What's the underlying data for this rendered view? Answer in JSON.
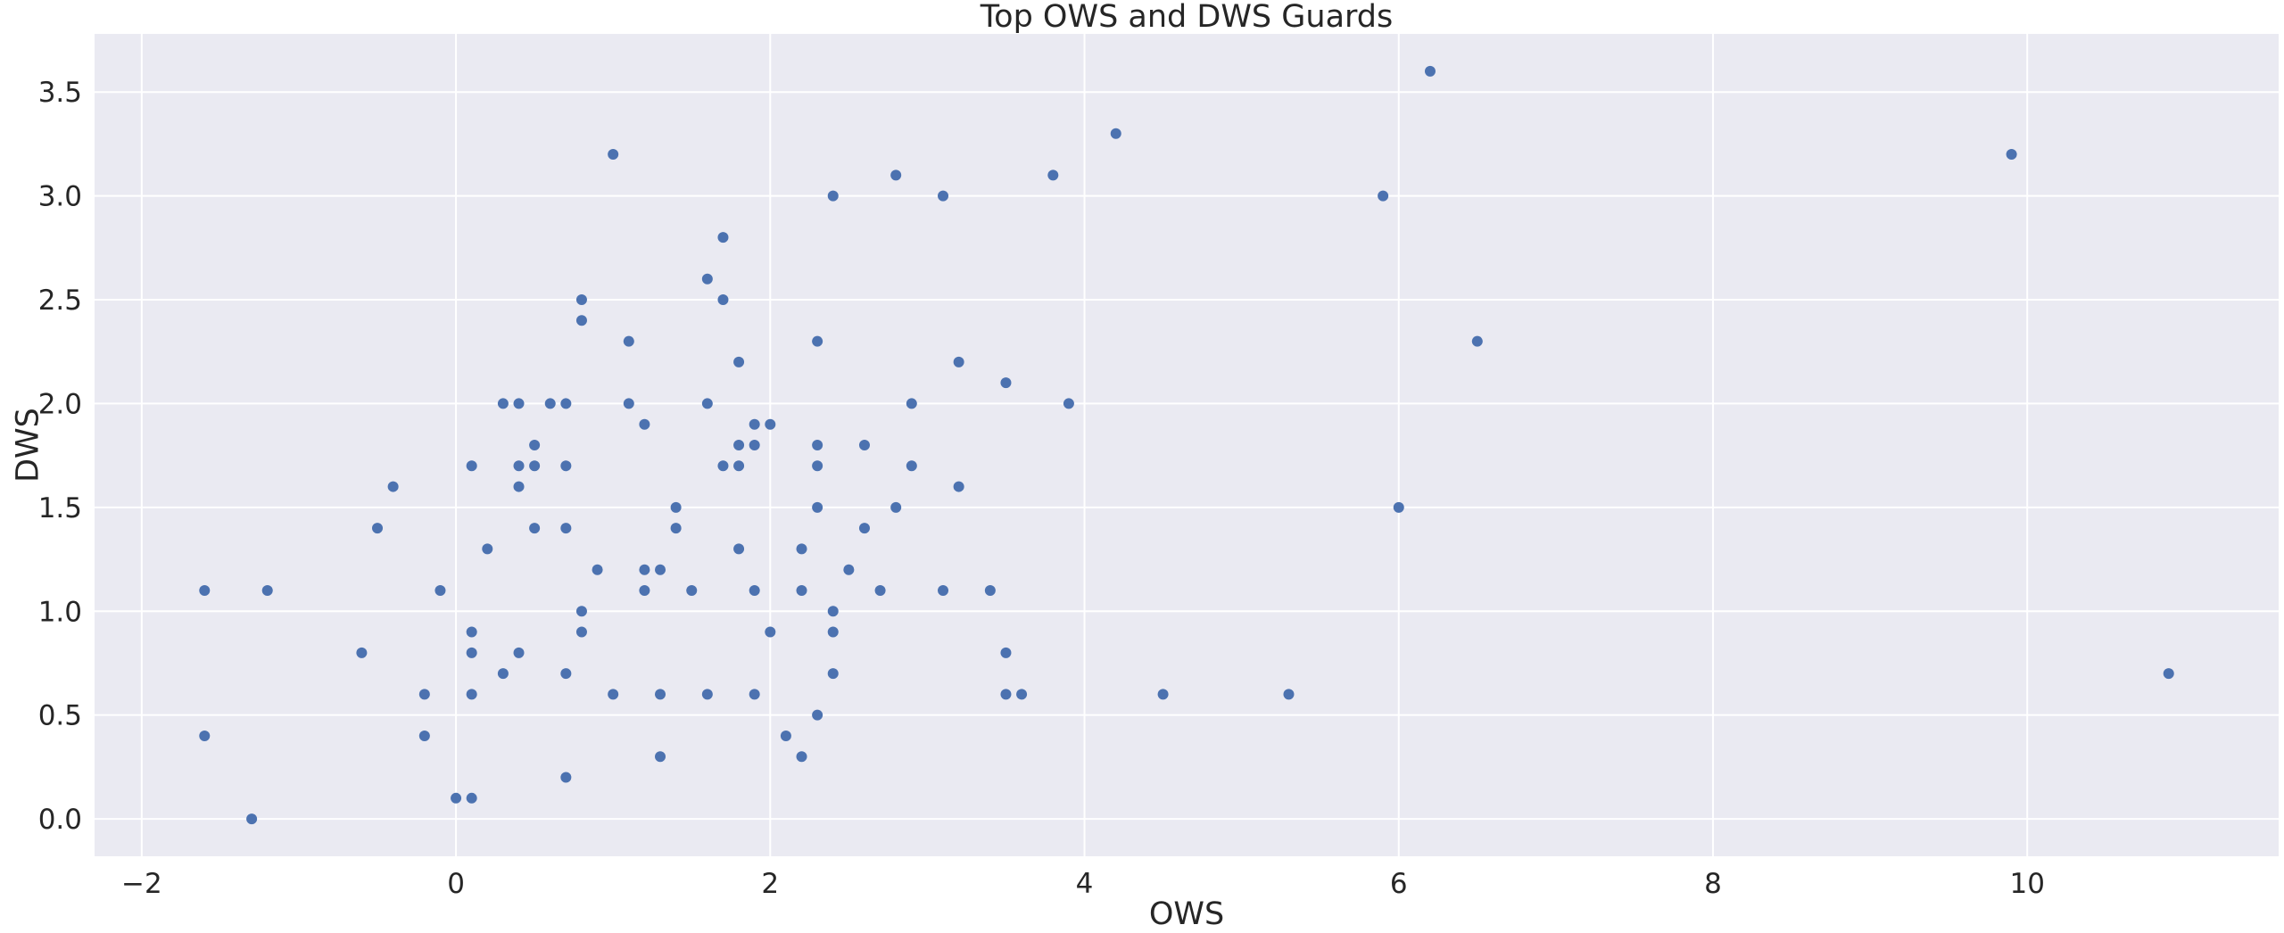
{
  "chart_data": {
    "type": "scatter",
    "title": "Top OWS and DWS Guards",
    "xlabel": "OWS",
    "ylabel": "DWS",
    "xlim": [
      -2.3,
      11.6
    ],
    "ylim": [
      -0.18,
      3.78
    ],
    "xticks": [
      -2,
      0,
      2,
      4,
      6,
      8,
      10
    ],
    "xtick_labels": [
      "−2",
      "0",
      "2",
      "4",
      "6",
      "8",
      "10"
    ],
    "yticks": [
      0.0,
      0.5,
      1.0,
      1.5,
      2.0,
      2.5,
      3.0,
      3.5
    ],
    "ytick_labels": [
      "0.0",
      "0.5",
      "1.0",
      "1.5",
      "2.0",
      "2.5",
      "3.0",
      "3.5"
    ],
    "grid": true,
    "colors": {
      "background": "#eaeaf2",
      "grid": "#ffffff",
      "point": "#4c72b0",
      "text": "#262626"
    },
    "points": [
      {
        "x": -1.6,
        "y": 1.1
      },
      {
        "x": -1.6,
        "y": 0.4
      },
      {
        "x": -1.3,
        "y": 0.0
      },
      {
        "x": -1.2,
        "y": 1.1
      },
      {
        "x": -0.6,
        "y": 0.8
      },
      {
        "x": -0.5,
        "y": 1.4
      },
      {
        "x": -0.4,
        "y": 1.6
      },
      {
        "x": -0.2,
        "y": 0.6
      },
      {
        "x": -0.2,
        "y": 0.4
      },
      {
        "x": -0.1,
        "y": 1.1
      },
      {
        "x": 0.0,
        "y": 0.1
      },
      {
        "x": 0.1,
        "y": 0.1
      },
      {
        "x": 0.1,
        "y": 0.6
      },
      {
        "x": 0.1,
        "y": 0.8
      },
      {
        "x": 0.1,
        "y": 0.9
      },
      {
        "x": 0.1,
        "y": 1.7
      },
      {
        "x": 0.2,
        "y": 1.3
      },
      {
        "x": 0.3,
        "y": 0.7
      },
      {
        "x": 0.3,
        "y": 2.0
      },
      {
        "x": 0.4,
        "y": 2.0
      },
      {
        "x": 0.4,
        "y": 1.7
      },
      {
        "x": 0.4,
        "y": 1.6
      },
      {
        "x": 0.4,
        "y": 0.8
      },
      {
        "x": 0.5,
        "y": 1.8
      },
      {
        "x": 0.5,
        "y": 1.7
      },
      {
        "x": 0.5,
        "y": 1.4
      },
      {
        "x": 0.6,
        "y": 2.0
      },
      {
        "x": 0.7,
        "y": 2.0
      },
      {
        "x": 0.7,
        "y": 1.7
      },
      {
        "x": 0.7,
        "y": 1.4
      },
      {
        "x": 0.7,
        "y": 0.7
      },
      {
        "x": 0.7,
        "y": 0.2
      },
      {
        "x": 0.8,
        "y": 2.5
      },
      {
        "x": 0.8,
        "y": 2.4
      },
      {
        "x": 0.8,
        "y": 1.0
      },
      {
        "x": 0.8,
        "y": 0.9
      },
      {
        "x": 0.9,
        "y": 1.2
      },
      {
        "x": 1.0,
        "y": 3.2
      },
      {
        "x": 1.0,
        "y": 0.6
      },
      {
        "x": 1.1,
        "y": 2.3
      },
      {
        "x": 1.1,
        "y": 2.0
      },
      {
        "x": 1.2,
        "y": 1.9
      },
      {
        "x": 1.2,
        "y": 1.2
      },
      {
        "x": 1.2,
        "y": 1.1
      },
      {
        "x": 1.3,
        "y": 1.2
      },
      {
        "x": 1.3,
        "y": 0.6
      },
      {
        "x": 1.3,
        "y": 0.3
      },
      {
        "x": 1.4,
        "y": 1.5
      },
      {
        "x": 1.4,
        "y": 1.4
      },
      {
        "x": 1.5,
        "y": 1.1
      },
      {
        "x": 1.6,
        "y": 2.6
      },
      {
        "x": 1.6,
        "y": 2.0
      },
      {
        "x": 1.6,
        "y": 0.6
      },
      {
        "x": 1.7,
        "y": 2.8
      },
      {
        "x": 1.7,
        "y": 2.5
      },
      {
        "x": 1.7,
        "y": 1.7
      },
      {
        "x": 1.8,
        "y": 2.2
      },
      {
        "x": 1.8,
        "y": 1.8
      },
      {
        "x": 1.8,
        "y": 1.7
      },
      {
        "x": 1.8,
        "y": 1.3
      },
      {
        "x": 1.9,
        "y": 1.9
      },
      {
        "x": 1.9,
        "y": 1.8
      },
      {
        "x": 1.9,
        "y": 1.1
      },
      {
        "x": 1.9,
        "y": 0.6
      },
      {
        "x": 2.0,
        "y": 1.9
      },
      {
        "x": 2.0,
        "y": 0.9
      },
      {
        "x": 2.1,
        "y": 0.4
      },
      {
        "x": 2.2,
        "y": 1.3
      },
      {
        "x": 2.2,
        "y": 1.1
      },
      {
        "x": 2.2,
        "y": 0.3
      },
      {
        "x": 2.3,
        "y": 2.3
      },
      {
        "x": 2.3,
        "y": 1.8
      },
      {
        "x": 2.3,
        "y": 1.7
      },
      {
        "x": 2.3,
        "y": 1.5
      },
      {
        "x": 2.3,
        "y": 0.5
      },
      {
        "x": 2.4,
        "y": 3.0
      },
      {
        "x": 2.4,
        "y": 1.0
      },
      {
        "x": 2.4,
        "y": 0.9
      },
      {
        "x": 2.4,
        "y": 0.7
      },
      {
        "x": 2.5,
        "y": 1.2
      },
      {
        "x": 2.6,
        "y": 1.8
      },
      {
        "x": 2.6,
        "y": 1.4
      },
      {
        "x": 2.7,
        "y": 1.1
      },
      {
        "x": 2.8,
        "y": 3.1
      },
      {
        "x": 2.8,
        "y": 1.5
      },
      {
        "x": 2.9,
        "y": 2.0
      },
      {
        "x": 2.9,
        "y": 1.7
      },
      {
        "x": 3.1,
        "y": 3.0
      },
      {
        "x": 3.1,
        "y": 1.1
      },
      {
        "x": 3.2,
        "y": 2.2
      },
      {
        "x": 3.2,
        "y": 1.6
      },
      {
        "x": 3.4,
        "y": 1.1
      },
      {
        "x": 3.5,
        "y": 2.1
      },
      {
        "x": 3.5,
        "y": 0.8
      },
      {
        "x": 3.5,
        "y": 0.6
      },
      {
        "x": 3.6,
        "y": 0.6
      },
      {
        "x": 3.8,
        "y": 3.1
      },
      {
        "x": 3.9,
        "y": 2.0
      },
      {
        "x": 4.2,
        "y": 3.3
      },
      {
        "x": 4.5,
        "y": 0.6
      },
      {
        "x": 5.3,
        "y": 0.6
      },
      {
        "x": 5.9,
        "y": 3.0
      },
      {
        "x": 6.0,
        "y": 1.5
      },
      {
        "x": 6.2,
        "y": 3.6
      },
      {
        "x": 6.5,
        "y": 2.3
      },
      {
        "x": 9.9,
        "y": 3.2
      },
      {
        "x": 10.9,
        "y": 0.7
      }
    ]
  }
}
